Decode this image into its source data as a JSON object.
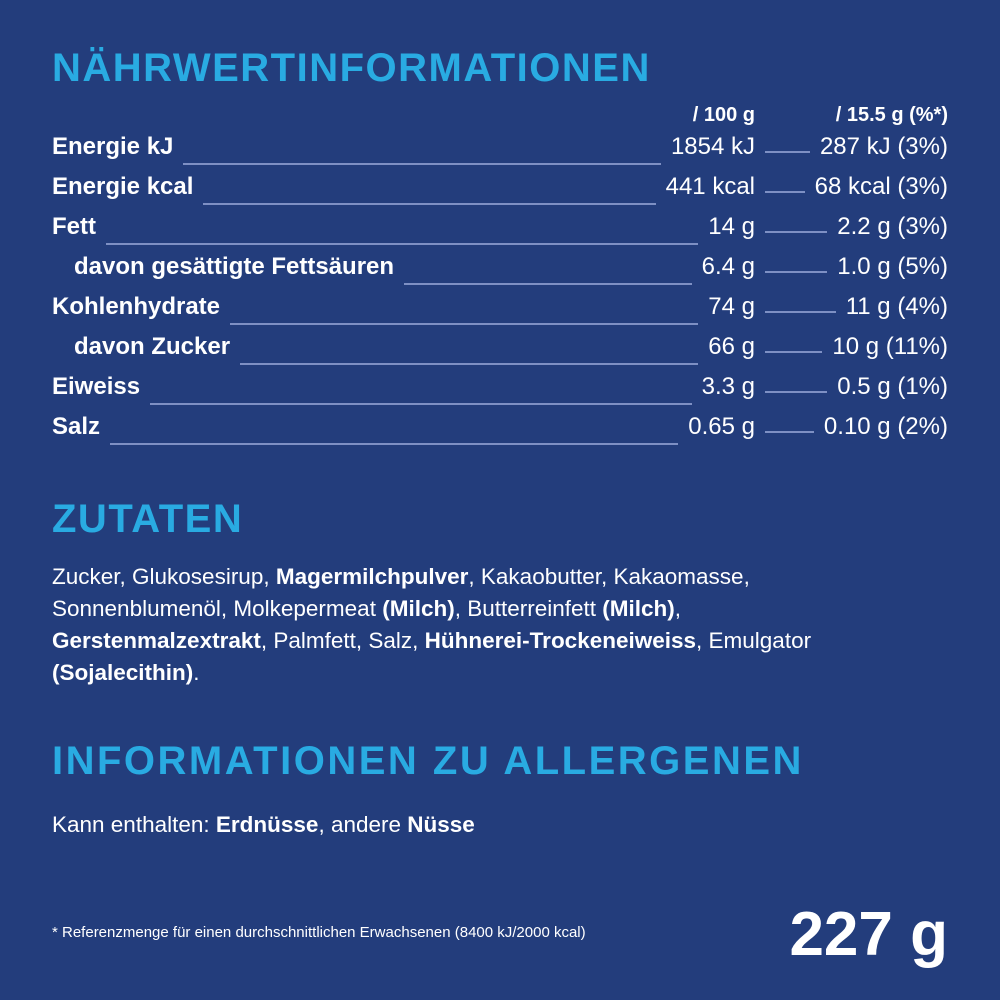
{
  "colors": {
    "background": "#233d7c",
    "accent": "#29abe2",
    "text": "#ffffff",
    "leader_line": "#7e90c4"
  },
  "nutrition": {
    "title": "NÄHRWERTINFORMATIONEN",
    "col1_header": "/ 100 g",
    "col2_header": "/ 15.5 g (%*)",
    "rows": [
      {
        "label": "Energie kJ",
        "indent": false,
        "per100": "1854 kJ",
        "portion": "287 kJ (3%)"
      },
      {
        "label": "Energie kcal",
        "indent": false,
        "per100": "441 kcal",
        "portion": "68 kcal (3%)"
      },
      {
        "label": "Fett",
        "indent": false,
        "per100": "14 g",
        "portion": "2.2 g (3%)"
      },
      {
        "label": "davon gesättigte Fettsäuren",
        "indent": true,
        "per100": "6.4 g",
        "portion": "1.0 g (5%)"
      },
      {
        "label": "Kohlenhydrate",
        "indent": false,
        "per100": "74 g",
        "portion": "11 g (4%)"
      },
      {
        "label": "davon Zucker",
        "indent": true,
        "per100": "66 g",
        "portion": "10 g (11%)"
      },
      {
        "label": "Eiweiss",
        "indent": false,
        "per100": "3.3 g",
        "portion": "0.5 g (1%)"
      },
      {
        "label": "Salz",
        "indent": false,
        "per100": "0.65 g",
        "portion": "0.10 g (2%)"
      }
    ]
  },
  "ingredients": {
    "title": "ZUTATEN",
    "segments": [
      {
        "text": "Zucker, Glukosesirup, ",
        "bold": false
      },
      {
        "text": "Magermilchpulver",
        "bold": true
      },
      {
        "text": ", Kakaobutter, Kakaomasse, Sonnenblumenöl, Molkepermeat ",
        "bold": false
      },
      {
        "text": "(Milch)",
        "bold": true
      },
      {
        "text": ", Butterreinfett ",
        "bold": false
      },
      {
        "text": "(Milch)",
        "bold": true
      },
      {
        "text": ", ",
        "bold": false
      },
      {
        "text": "Gerstenmalzextrakt",
        "bold": true
      },
      {
        "text": ", Palmfett, Salz, ",
        "bold": false
      },
      {
        "text": "Hühnerei-Trockeneiweiss",
        "bold": true
      },
      {
        "text": ", Emulgator ",
        "bold": false
      },
      {
        "text": "(Sojalecithin)",
        "bold": true
      },
      {
        "text": ".",
        "bold": false
      }
    ]
  },
  "allergens": {
    "title": "INFORMATIONEN ZU ALLERGENEN",
    "segments": [
      {
        "text": "Kann enthalten: ",
        "bold": false
      },
      {
        "text": "Erdnüsse",
        "bold": true
      },
      {
        "text": ", andere ",
        "bold": false
      },
      {
        "text": "Nüsse",
        "bold": true
      }
    ]
  },
  "footer": {
    "reference_note": "* Referenzmenge für einen durchschnittlichen Erwachsenen (8400 kJ/2000 kcal)",
    "net_weight": "227 g"
  }
}
